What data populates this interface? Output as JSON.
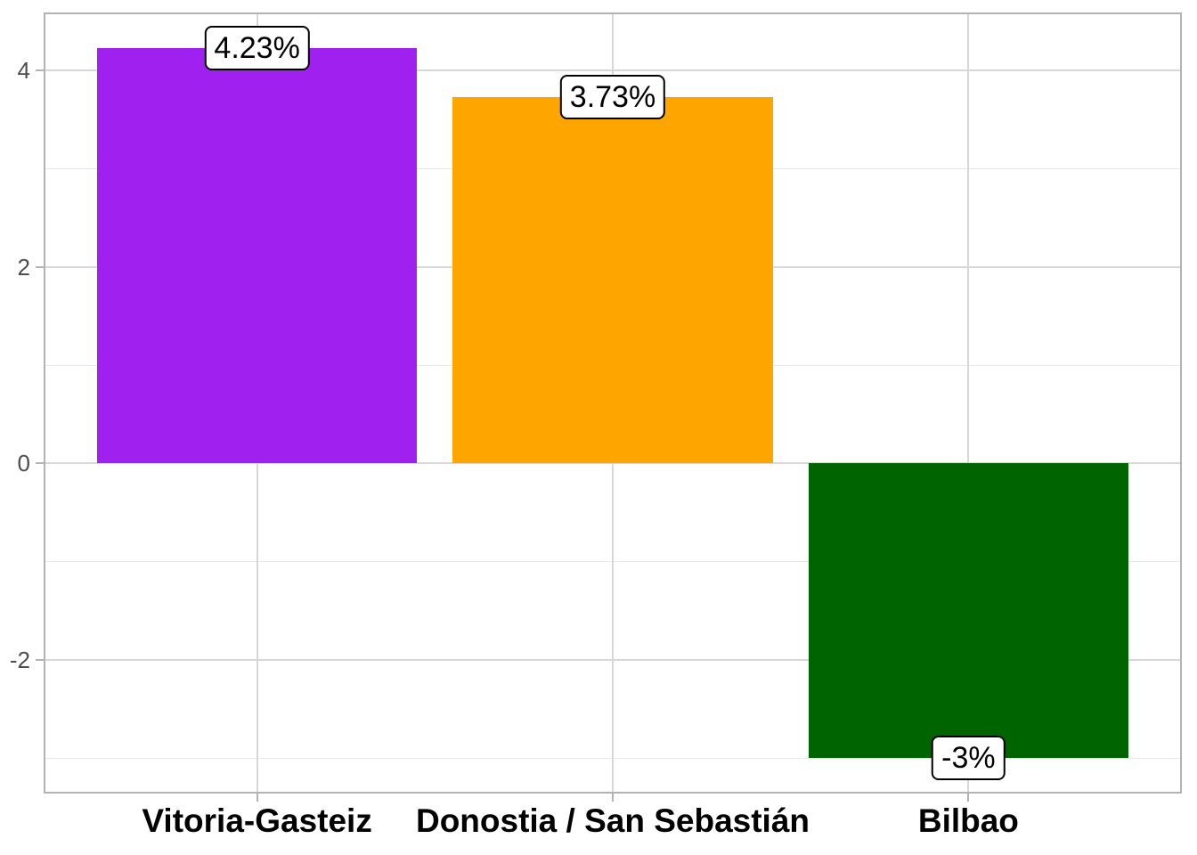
{
  "figure": {
    "background": "#ffffff",
    "title": ""
  },
  "chart_data": {
    "type": "bar",
    "title": "",
    "xlabel": "",
    "ylabel": "",
    "categories": [
      "Vitoria-Gasteiz",
      "Donostia / San Sebastián",
      "Bilbao"
    ],
    "values": [
      4.23,
      3.73,
      -3
    ],
    "bar_labels": [
      "4.23%",
      "3.73%",
      "-3%"
    ],
    "bar_colors": [
      "#a020f0",
      "#ffa500",
      "#006400"
    ],
    "bar_width_ratio": 0.9,
    "ylim": [
      -3.36,
      4.59
    ],
    "y_axis": {
      "major_ticks": [
        4,
        2,
        0,
        -2
      ],
      "tick_labels": [
        "4",
        "2",
        "0",
        "-2"
      ],
      "minor_gridlines": [
        3,
        1,
        -1,
        -3
      ]
    },
    "x_axis": {
      "tick_labels": [
        "Vitoria-Gasteiz",
        "Donostia / San Sebastián",
        "Bilbao"
      ]
    },
    "grid": "horizontal major+minor gridlines; vertical major gridline at each category center",
    "legend": "none",
    "value_label_style": "rounded white box with black border centered on bar end"
  },
  "style": {
    "panel_border_color": "#b3b3b3",
    "grid_major_color": "#d7d7d7",
    "grid_minor_color": "#e7e7e7",
    "axis_tick_color": "#b3b3b3",
    "y_axis_text_color": "#4d4d4d",
    "x_axis_text_color": "#000000",
    "label_box_fill": "#ffffff",
    "label_box_border_color": "#000000",
    "label_text_color": "#000000"
  }
}
